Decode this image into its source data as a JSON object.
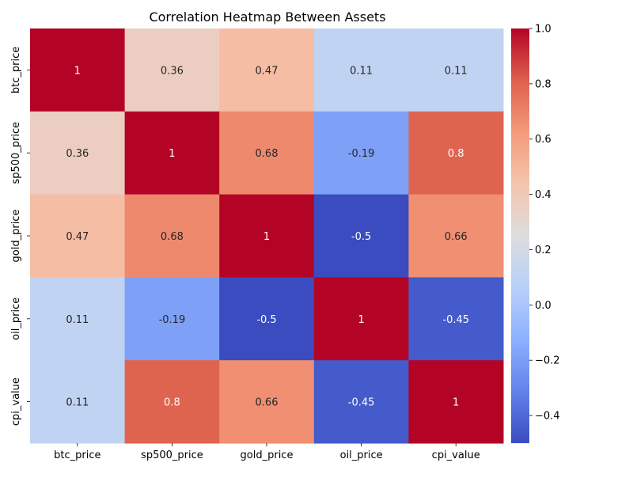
{
  "chart_data": {
    "type": "heatmap",
    "title": "Correlation Heatmap Between Assets",
    "xlabel": "",
    "ylabel": "",
    "x_categories": [
      "btc_price",
      "sp500_price",
      "gold_price",
      "oil_price",
      "cpi_value"
    ],
    "y_categories": [
      "btc_price",
      "sp500_price",
      "gold_price",
      "oil_price",
      "cpi_value"
    ],
    "values": [
      [
        1,
        0.36,
        0.47,
        0.11,
        0.11
      ],
      [
        0.36,
        1,
        0.68,
        -0.19,
        0.8
      ],
      [
        0.47,
        0.68,
        1,
        -0.5,
        0.66
      ],
      [
        0.11,
        -0.19,
        -0.5,
        1,
        -0.45
      ],
      [
        0.11,
        0.8,
        0.66,
        -0.45,
        1
      ]
    ],
    "annotations": [
      [
        "1",
        "0.36",
        "0.47",
        "0.11",
        "0.11"
      ],
      [
        "0.36",
        "1",
        "0.68",
        "-0.19",
        "0.8"
      ],
      [
        "0.47",
        "0.68",
        "1",
        "-0.5",
        "0.66"
      ],
      [
        "0.11",
        "-0.19",
        "-0.5",
        "1",
        "-0.45"
      ],
      [
        "0.11",
        "0.8",
        "0.66",
        "-0.45",
        "1"
      ]
    ],
    "colormap": "coolwarm",
    "colorbar": {
      "range": [
        -0.5,
        1.0
      ],
      "ticks": [
        -0.4,
        -0.2,
        0.0,
        0.2,
        0.4,
        0.6,
        0.8,
        1.0
      ],
      "tick_labels": [
        "−0.4",
        "−0.2",
        "0.0",
        "0.2",
        "0.4",
        "0.6",
        "0.8",
        "1.0"
      ],
      "position": "right"
    },
    "grid": false
  }
}
